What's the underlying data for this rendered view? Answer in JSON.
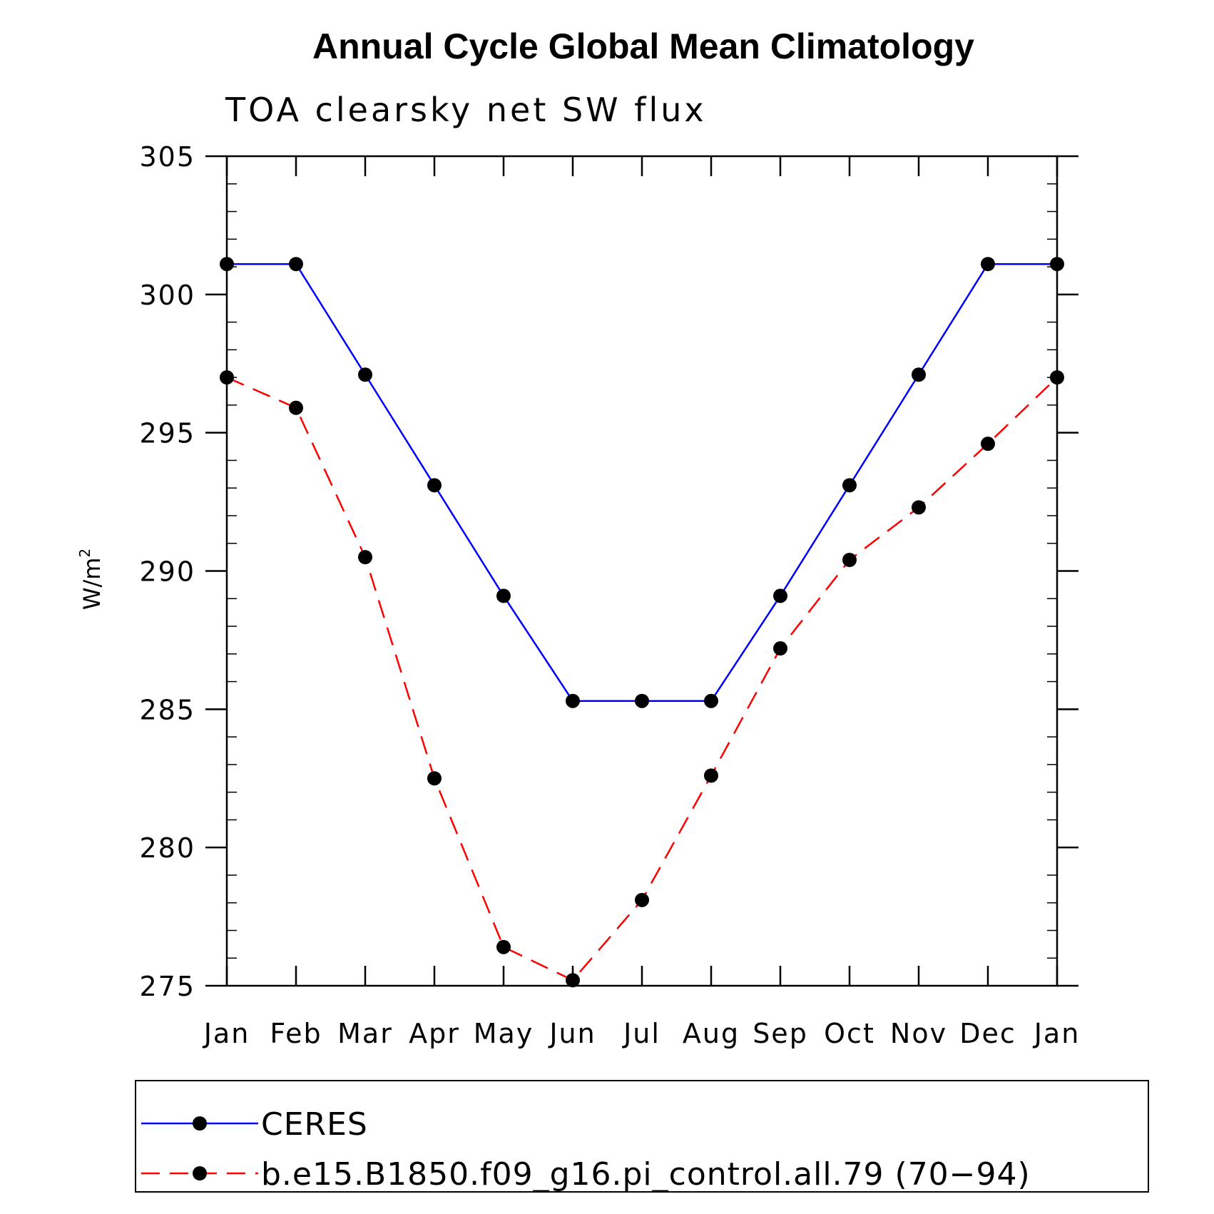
{
  "chart_data": {
    "type": "line",
    "title": "Annual Cycle Global Mean Climatology",
    "subtitle": "TOA clearsky net SW flux",
    "ylabel": "W/m",
    "ylabel_sup": "2",
    "ylim": [
      275,
      305
    ],
    "yticks": [
      275,
      280,
      285,
      290,
      295,
      300,
      305
    ],
    "categories": [
      "Jan",
      "Feb",
      "Mar",
      "Apr",
      "May",
      "Jun",
      "Jul",
      "Aug",
      "Sep",
      "Oct",
      "Nov",
      "Dec",
      "Jan"
    ],
    "grid": false,
    "legend_position": "bottom",
    "series": [
      {
        "name": "CERES",
        "color": "#0000ff",
        "dash": "solid",
        "values": [
          301.1,
          301.1,
          297.1,
          293.1,
          289.1,
          285.3,
          285.3,
          285.3,
          289.1,
          293.1,
          297.1,
          301.1,
          301.1
        ]
      },
      {
        "name": "b.e15.B1850.f09_g16.pi_control.all.79 (70−94)",
        "color": "#ff0000",
        "dash": "dashed",
        "values": [
          297.0,
          295.9,
          290.5,
          282.5,
          276.4,
          275.2,
          278.1,
          282.6,
          287.2,
          290.4,
          292.3,
          294.6,
          297.0
        ]
      }
    ]
  }
}
